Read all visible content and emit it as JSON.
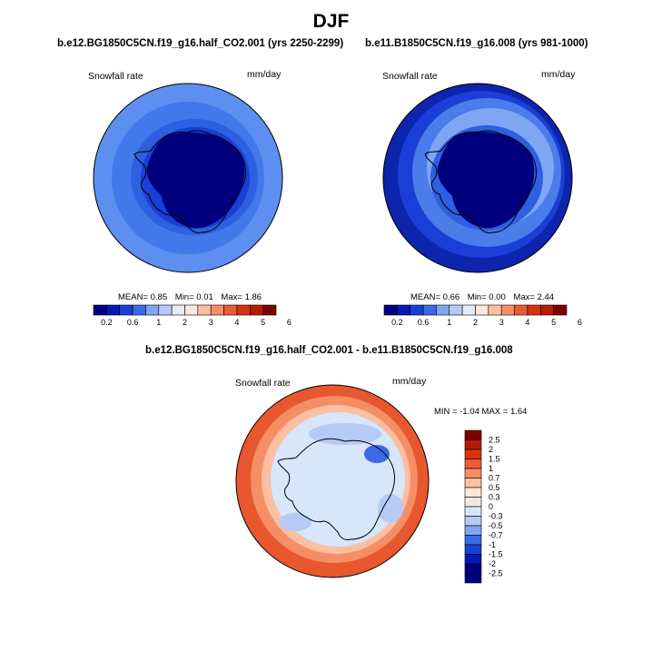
{
  "page_title": "DJF",
  "panels": [
    {
      "title": "b.e12.BG1850C5CN.f19_g16.half_CO2.001 (yrs 2250-2299)",
      "variable": "Snowfall rate",
      "units": "mm/day",
      "stats": {
        "mean_label": "MEAN=",
        "mean": "0.85",
        "min_label": "Min=",
        "min": "0.01",
        "max_label": "Max=",
        "max": "1.86"
      }
    },
    {
      "title": "b.e11.B1850C5CN.f19_g16.008 (yrs 981-1000)",
      "variable": "Snowfall rate",
      "units": "mm/day",
      "stats": {
        "mean_label": "MEAN=",
        "mean": "0.66",
        "min_label": "Min=",
        "min": "0.00",
        "max_label": "Max=",
        "max": "2.44"
      }
    },
    {
      "title": "b.e12.BG1850C5CN.f19_g16.half_CO2.001 - b.e11.B1850C5CN.f19_g16.008",
      "variable": "Snowfall rate",
      "units": "mm/day",
      "minmax_label": "MIN = -1.04 MAX = 1.64"
    }
  ],
  "chart_data": [
    {
      "type": "heatmap",
      "title": "b.e12.BG1850C5CN.f19_g16.half_CO2.001 (yrs 2250-2299)",
      "projection": "south-polar-stereographic",
      "variable": "Snowfall rate",
      "units": "mm/day",
      "mean": 0.85,
      "min": 0.01,
      "max": 1.86,
      "colorbar_ticks": [
        "0.2",
        "0.6",
        "1",
        "2",
        "3",
        "4",
        "5",
        "6"
      ],
      "colorbar_colors": [
        "#00007f",
        "#0719b3",
        "#1a3fd6",
        "#3a6ae6",
        "#7ea6f2",
        "#b5cbf5",
        "#e2ecfb",
        "#fde7da",
        "#fbbfa2",
        "#f58e64",
        "#ee5a35",
        "#d9310f",
        "#b81b04",
        "#7f0000"
      ],
      "colorbar_orientation": "horizontal"
    },
    {
      "type": "heatmap",
      "title": "b.e11.B1850C5CN.f19_g16.008 (yrs 981-1000)",
      "projection": "south-polar-stereographic",
      "variable": "Snowfall rate",
      "units": "mm/day",
      "mean": 0.66,
      "min": 0.0,
      "max": 2.44,
      "colorbar_ticks": [
        "0.2",
        "0.6",
        "1",
        "2",
        "3",
        "4",
        "5",
        "6"
      ],
      "colorbar_colors": [
        "#00007f",
        "#0719b3",
        "#1a3fd6",
        "#3a6ae6",
        "#7ea6f2",
        "#b5cbf5",
        "#e2ecfb",
        "#fde7da",
        "#fbbfa2",
        "#f58e64",
        "#ee5a35",
        "#d9310f",
        "#b81b04",
        "#7f0000"
      ],
      "colorbar_orientation": "horizontal"
    },
    {
      "type": "heatmap",
      "title": "b.e12.BG1850C5CN.f19_g16.half_CO2.001 - b.e11.B1850C5CN.f19_g16.008",
      "projection": "south-polar-stereographic",
      "variable": "Snowfall rate",
      "units": "mm/day",
      "min": -1.04,
      "max": 1.64,
      "colorbar_levels": [
        "2.5",
        "2",
        "1.5",
        "1",
        "0.7",
        "0.5",
        "0.3",
        "0",
        "-0.3",
        "-0.5",
        "-0.7",
        "-1",
        "-1.5",
        "-2",
        "-2.5"
      ],
      "colorbar_colors": [
        "#7f0000",
        "#b81b04",
        "#d9310f",
        "#ee5a35",
        "#f58e64",
        "#fbbfa2",
        "#fde7da",
        "#f3e7e3",
        "#d7e6fb",
        "#b5cbf5",
        "#7ea6f2",
        "#3a6ae6",
        "#1a3fd6",
        "#0719b3",
        "#00007f"
      ],
      "colorbar_orientation": "vertical"
    }
  ]
}
